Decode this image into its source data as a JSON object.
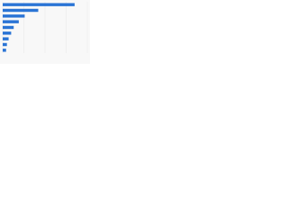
{
  "chart_data": {
    "type": "bar",
    "orientation": "horizontal",
    "values": [
      85,
      42,
      26,
      19,
      13,
      10,
      7,
      5,
      4
    ],
    "color": "#2a74d5",
    "xlim": [
      0,
      100
    ],
    "xticks": [
      0,
      25,
      50,
      75,
      100
    ],
    "grid": true
  }
}
